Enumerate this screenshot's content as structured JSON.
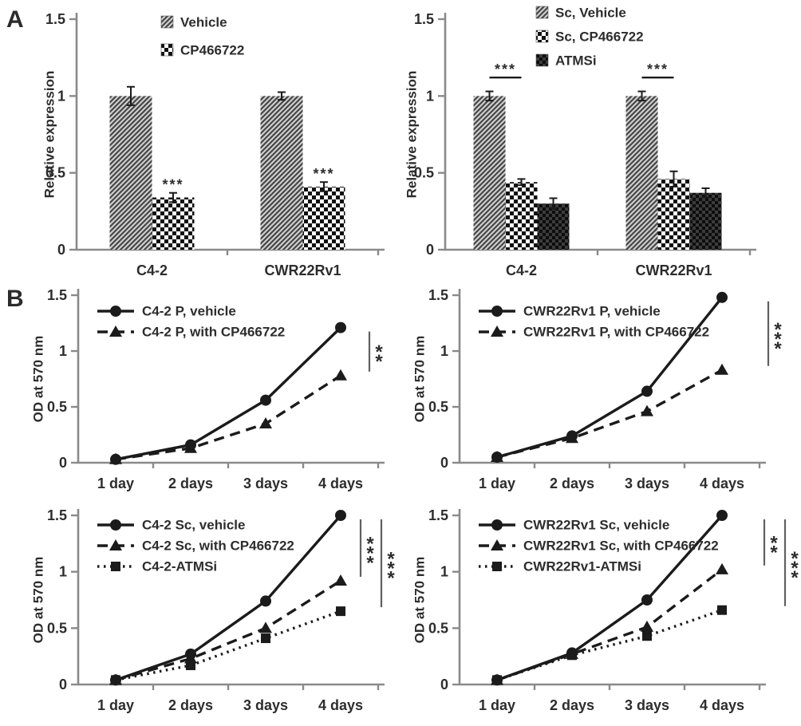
{
  "figure": {
    "panel_a_label": "A",
    "panel_b_label": "B",
    "background": "#ffffff"
  },
  "colors": {
    "ink": "#1b1b1b",
    "axis": "#8a8a8a",
    "text": "#2d2d2d",
    "sig_line": "#606060"
  },
  "chart_data": [
    {
      "id": "a-left",
      "panel": "A",
      "type": "bar",
      "ylabel": "Relative expression",
      "ylim": [
        0,
        1.5
      ],
      "yticks": [
        {
          "v": 0,
          "label": "0"
        },
        {
          "v": 0.5,
          "label": "0.5"
        },
        {
          "v": 1,
          "label": "1"
        },
        {
          "v": 1.5,
          "label": "1.5"
        }
      ],
      "categories": [
        "C4-2",
        "CWR22Rv1"
      ],
      "series": [
        {
          "name": "Vehicle",
          "pattern": "diag",
          "values": [
            1.0,
            1.0
          ],
          "errors": [
            0.06,
            0.025
          ]
        },
        {
          "name": "CP466722",
          "pattern": "check",
          "values": [
            0.34,
            0.41
          ],
          "errors": [
            0.03,
            0.03
          ]
        }
      ],
      "significance": [
        {
          "style": "stars",
          "category": 0,
          "series": 1,
          "label": "***"
        },
        {
          "style": "stars",
          "category": 1,
          "series": 1,
          "label": "***"
        }
      ],
      "legend_position": "top-center",
      "grid": false
    },
    {
      "id": "a-right",
      "panel": "A",
      "type": "bar",
      "ylabel": "Relative expression",
      "ylim": [
        0,
        1.5
      ],
      "yticks": [
        {
          "v": 0,
          "label": "0"
        },
        {
          "v": 0.5,
          "label": "0.5"
        },
        {
          "v": 1,
          "label": "1"
        },
        {
          "v": 1.5,
          "label": "1.5"
        }
      ],
      "categories": [
        "C4-2",
        "CWR22Rv1"
      ],
      "series": [
        {
          "name": "Sc, Vehicle",
          "pattern": "diag",
          "values": [
            1.0,
            1.0
          ],
          "errors": [
            0.03,
            0.03
          ]
        },
        {
          "name": "Sc, CP466722",
          "pattern": "check",
          "values": [
            0.44,
            0.46
          ],
          "errors": [
            0.02,
            0.05
          ]
        },
        {
          "name": "ATMSi",
          "pattern": "darkcheck",
          "values": [
            0.3,
            0.37
          ],
          "errors": [
            0.035,
            0.03
          ]
        }
      ],
      "significance": [
        {
          "style": "bracket",
          "category": 0,
          "from_series": 0,
          "to_series": 1,
          "level": 1.12,
          "label": "***"
        },
        {
          "style": "bracket",
          "category": 1,
          "from_series": 0,
          "to_series": 1,
          "level": 1.12,
          "label": "***"
        }
      ],
      "legend_position": "top-center",
      "grid": false
    },
    {
      "id": "b-tl",
      "panel": "B",
      "type": "line",
      "ylabel": "OD at 570 nm",
      "ylim": [
        0,
        1.5
      ],
      "yticks": [
        {
          "v": 0,
          "label": "0"
        },
        {
          "v": 0.5,
          "label": "0.5"
        },
        {
          "v": 1,
          "label": "1"
        },
        {
          "v": 1.5,
          "label": "1.5"
        }
      ],
      "categories": [
        "1 day",
        "2 days",
        "3 days",
        "4 days"
      ],
      "series": [
        {
          "name": "C4-2 P, vehicle",
          "line": "solid",
          "marker": "circle",
          "values": [
            0.03,
            0.16,
            0.56,
            1.21
          ]
        },
        {
          "name": "C4-2 P, with CP466722",
          "line": "dashed",
          "marker": "triangle",
          "values": [
            0.03,
            0.13,
            0.35,
            0.78
          ]
        }
      ],
      "significance": [
        {
          "style": "vline",
          "series_a": 0,
          "series_b": 1,
          "label": "**"
        }
      ],
      "legend_position": "top-left",
      "grid": false
    },
    {
      "id": "b-tr",
      "panel": "B",
      "type": "line",
      "ylabel": "OD at 570 nm",
      "ylim": [
        0,
        1.5
      ],
      "yticks": [
        {
          "v": 0,
          "label": "0"
        },
        {
          "v": 0.5,
          "label": "0.5"
        },
        {
          "v": 1,
          "label": "1"
        },
        {
          "v": 1.5,
          "label": "1.5"
        }
      ],
      "categories": [
        "1 day",
        "2 days",
        "3 days",
        "4 days"
      ],
      "series": [
        {
          "name": "CWR22Rv1 P, vehicle",
          "line": "solid",
          "marker": "circle",
          "values": [
            0.05,
            0.24,
            0.64,
            1.48
          ]
        },
        {
          "name": "CWR22Rv1 P, with CP466722",
          "line": "dashed",
          "marker": "triangle",
          "values": [
            0.05,
            0.22,
            0.46,
            0.83
          ]
        }
      ],
      "significance": [
        {
          "style": "vline",
          "series_a": 0,
          "series_b": 1,
          "label": "***"
        }
      ],
      "legend_position": "top-left",
      "grid": false
    },
    {
      "id": "b-bl",
      "panel": "B",
      "type": "line",
      "ylabel": "OD at 570 nm",
      "ylim": [
        0,
        1.5
      ],
      "yticks": [
        {
          "v": 0,
          "label": "0"
        },
        {
          "v": 0.5,
          "label": "0.5"
        },
        {
          "v": 1,
          "label": "1"
        },
        {
          "v": 1.5,
          "label": "1.5"
        }
      ],
      "categories": [
        "1 day",
        "2 days",
        "3 days",
        "4 days"
      ],
      "series": [
        {
          "name": "C4-2 Sc, vehicle",
          "line": "solid",
          "marker": "circle",
          "values": [
            0.04,
            0.27,
            0.74,
            1.5
          ]
        },
        {
          "name": "C4-2 Sc, with CP466722",
          "line": "dashed",
          "marker": "triangle",
          "values": [
            0.04,
            0.23,
            0.5,
            0.92
          ]
        },
        {
          "name": "C4-2-ATMSi",
          "line": "dotted",
          "marker": "square",
          "values": [
            0.04,
            0.17,
            0.41,
            0.65
          ]
        }
      ],
      "significance": [
        {
          "style": "vline",
          "series_a": 0,
          "series_b": 1,
          "label": "***"
        },
        {
          "style": "vline",
          "series_a": 0,
          "series_b": 2,
          "label": "***"
        }
      ],
      "legend_position": "top-left",
      "grid": false
    },
    {
      "id": "b-br",
      "panel": "B",
      "type": "line",
      "ylabel": "OD at 570 nm",
      "ylim": [
        0,
        1.5
      ],
      "yticks": [
        {
          "v": 0,
          "label": "0"
        },
        {
          "v": 0.5,
          "label": "0.5"
        },
        {
          "v": 1,
          "label": "1"
        },
        {
          "v": 1.5,
          "label": "1.5"
        }
      ],
      "categories": [
        "1 day",
        "2 days",
        "3 days",
        "4 days"
      ],
      "series": [
        {
          "name": "CWR22Rv1 Sc, vehicle",
          "line": "solid",
          "marker": "circle",
          "values": [
            0.04,
            0.28,
            0.75,
            1.5
          ]
        },
        {
          "name": "CWR22Rv1 Sc, with CP466722",
          "line": "dashed",
          "marker": "triangle",
          "values": [
            0.04,
            0.27,
            0.51,
            1.02
          ]
        },
        {
          "name": "CWR22Rv1-ATMSi",
          "line": "dotted",
          "marker": "square",
          "values": [
            0.04,
            0.26,
            0.43,
            0.66
          ]
        }
      ],
      "significance": [
        {
          "style": "vline",
          "series_a": 0,
          "series_b": 1,
          "label": "**"
        },
        {
          "style": "vline",
          "series_a": 0,
          "series_b": 2,
          "label": "***"
        }
      ],
      "legend_position": "top-left",
      "grid": false
    }
  ]
}
